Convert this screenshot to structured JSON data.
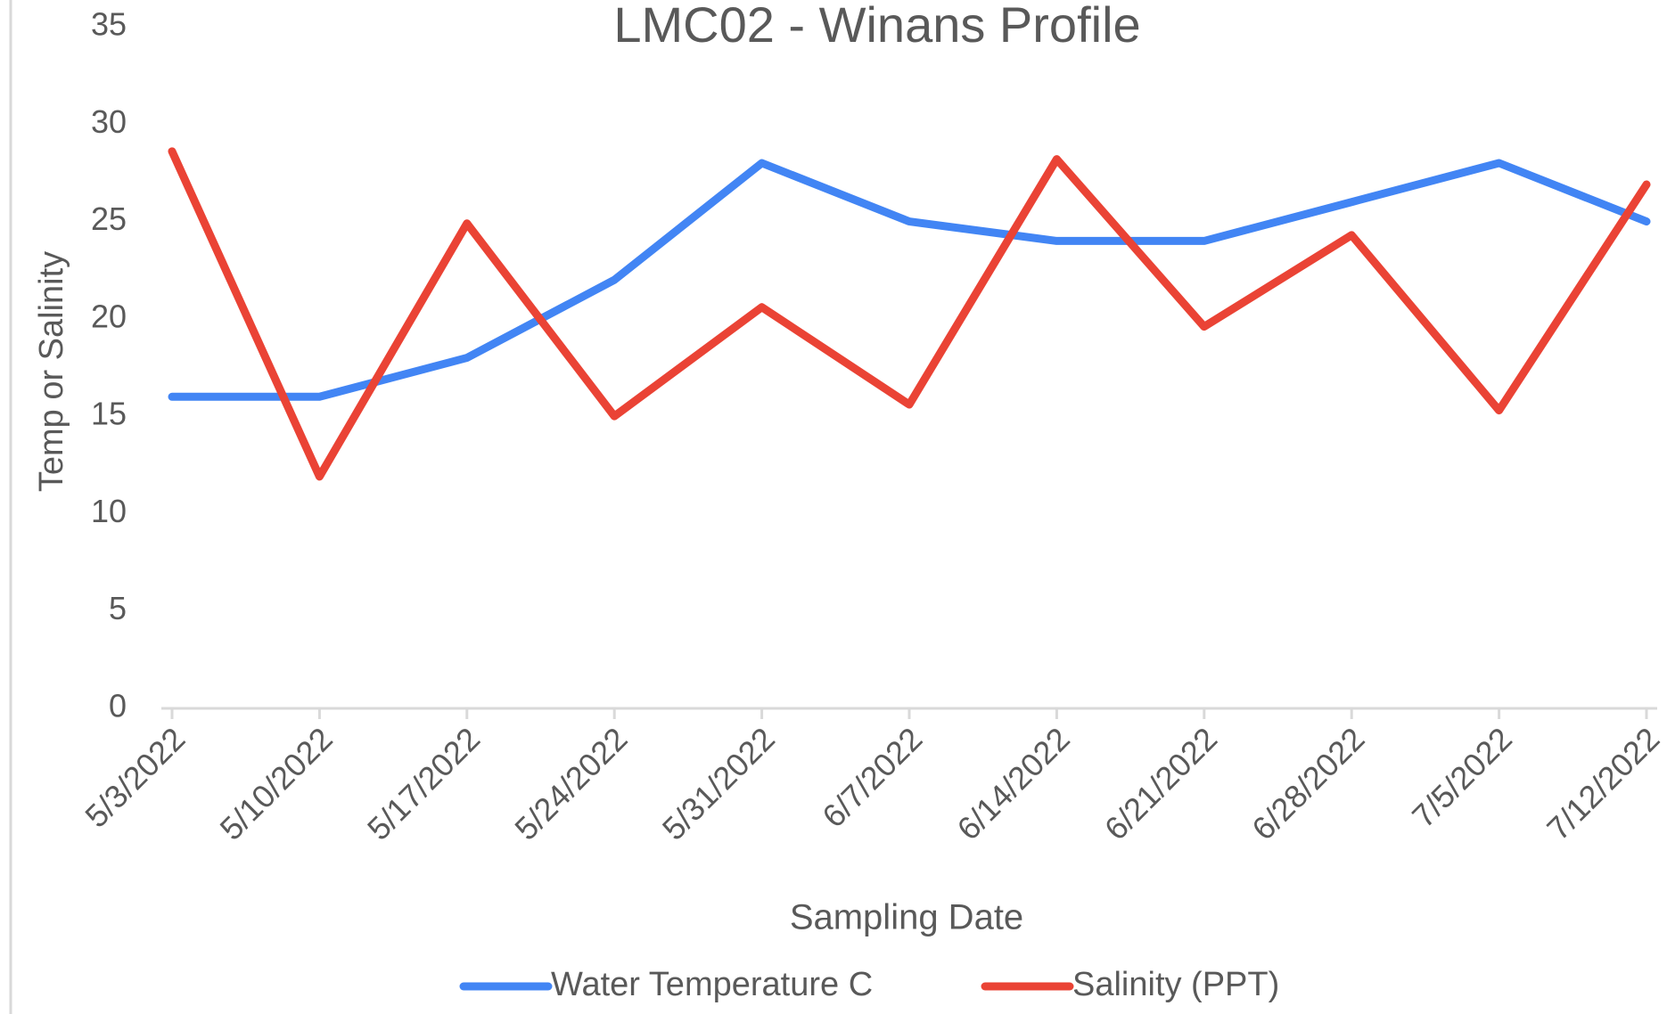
{
  "chart_data": {
    "type": "line",
    "title": "LMC02 - Winans Profile",
    "x_label": "Sampling Date",
    "y_label": "Temp or Salinity",
    "categories": [
      "5/3/2022",
      "5/10/2022",
      "5/17/2022",
      "5/24/2022",
      "5/31/2022",
      "6/7/2022",
      "6/14/2022",
      "6/21/2022",
      "6/28/2022",
      "7/5/2022",
      "7/12/2022"
    ],
    "series": [
      {
        "name": "Water Temperature C",
        "color": "#4285f4",
        "values": [
          16,
          16,
          18,
          22,
          28,
          25,
          24,
          24,
          26,
          28,
          25
        ]
      },
      {
        "name": "Salinity (PPT)",
        "color": "#ea4335",
        "values": [
          28.6,
          11.9,
          24.9,
          15,
          20.6,
          15.6,
          28.2,
          19.6,
          24.3,
          15.3,
          26.9
        ]
      }
    ],
    "ylim": [
      0,
      35
    ],
    "yticks": [
      0,
      5,
      10,
      15,
      20,
      25,
      30,
      35
    ],
    "grid": false,
    "legend": "bottom"
  }
}
